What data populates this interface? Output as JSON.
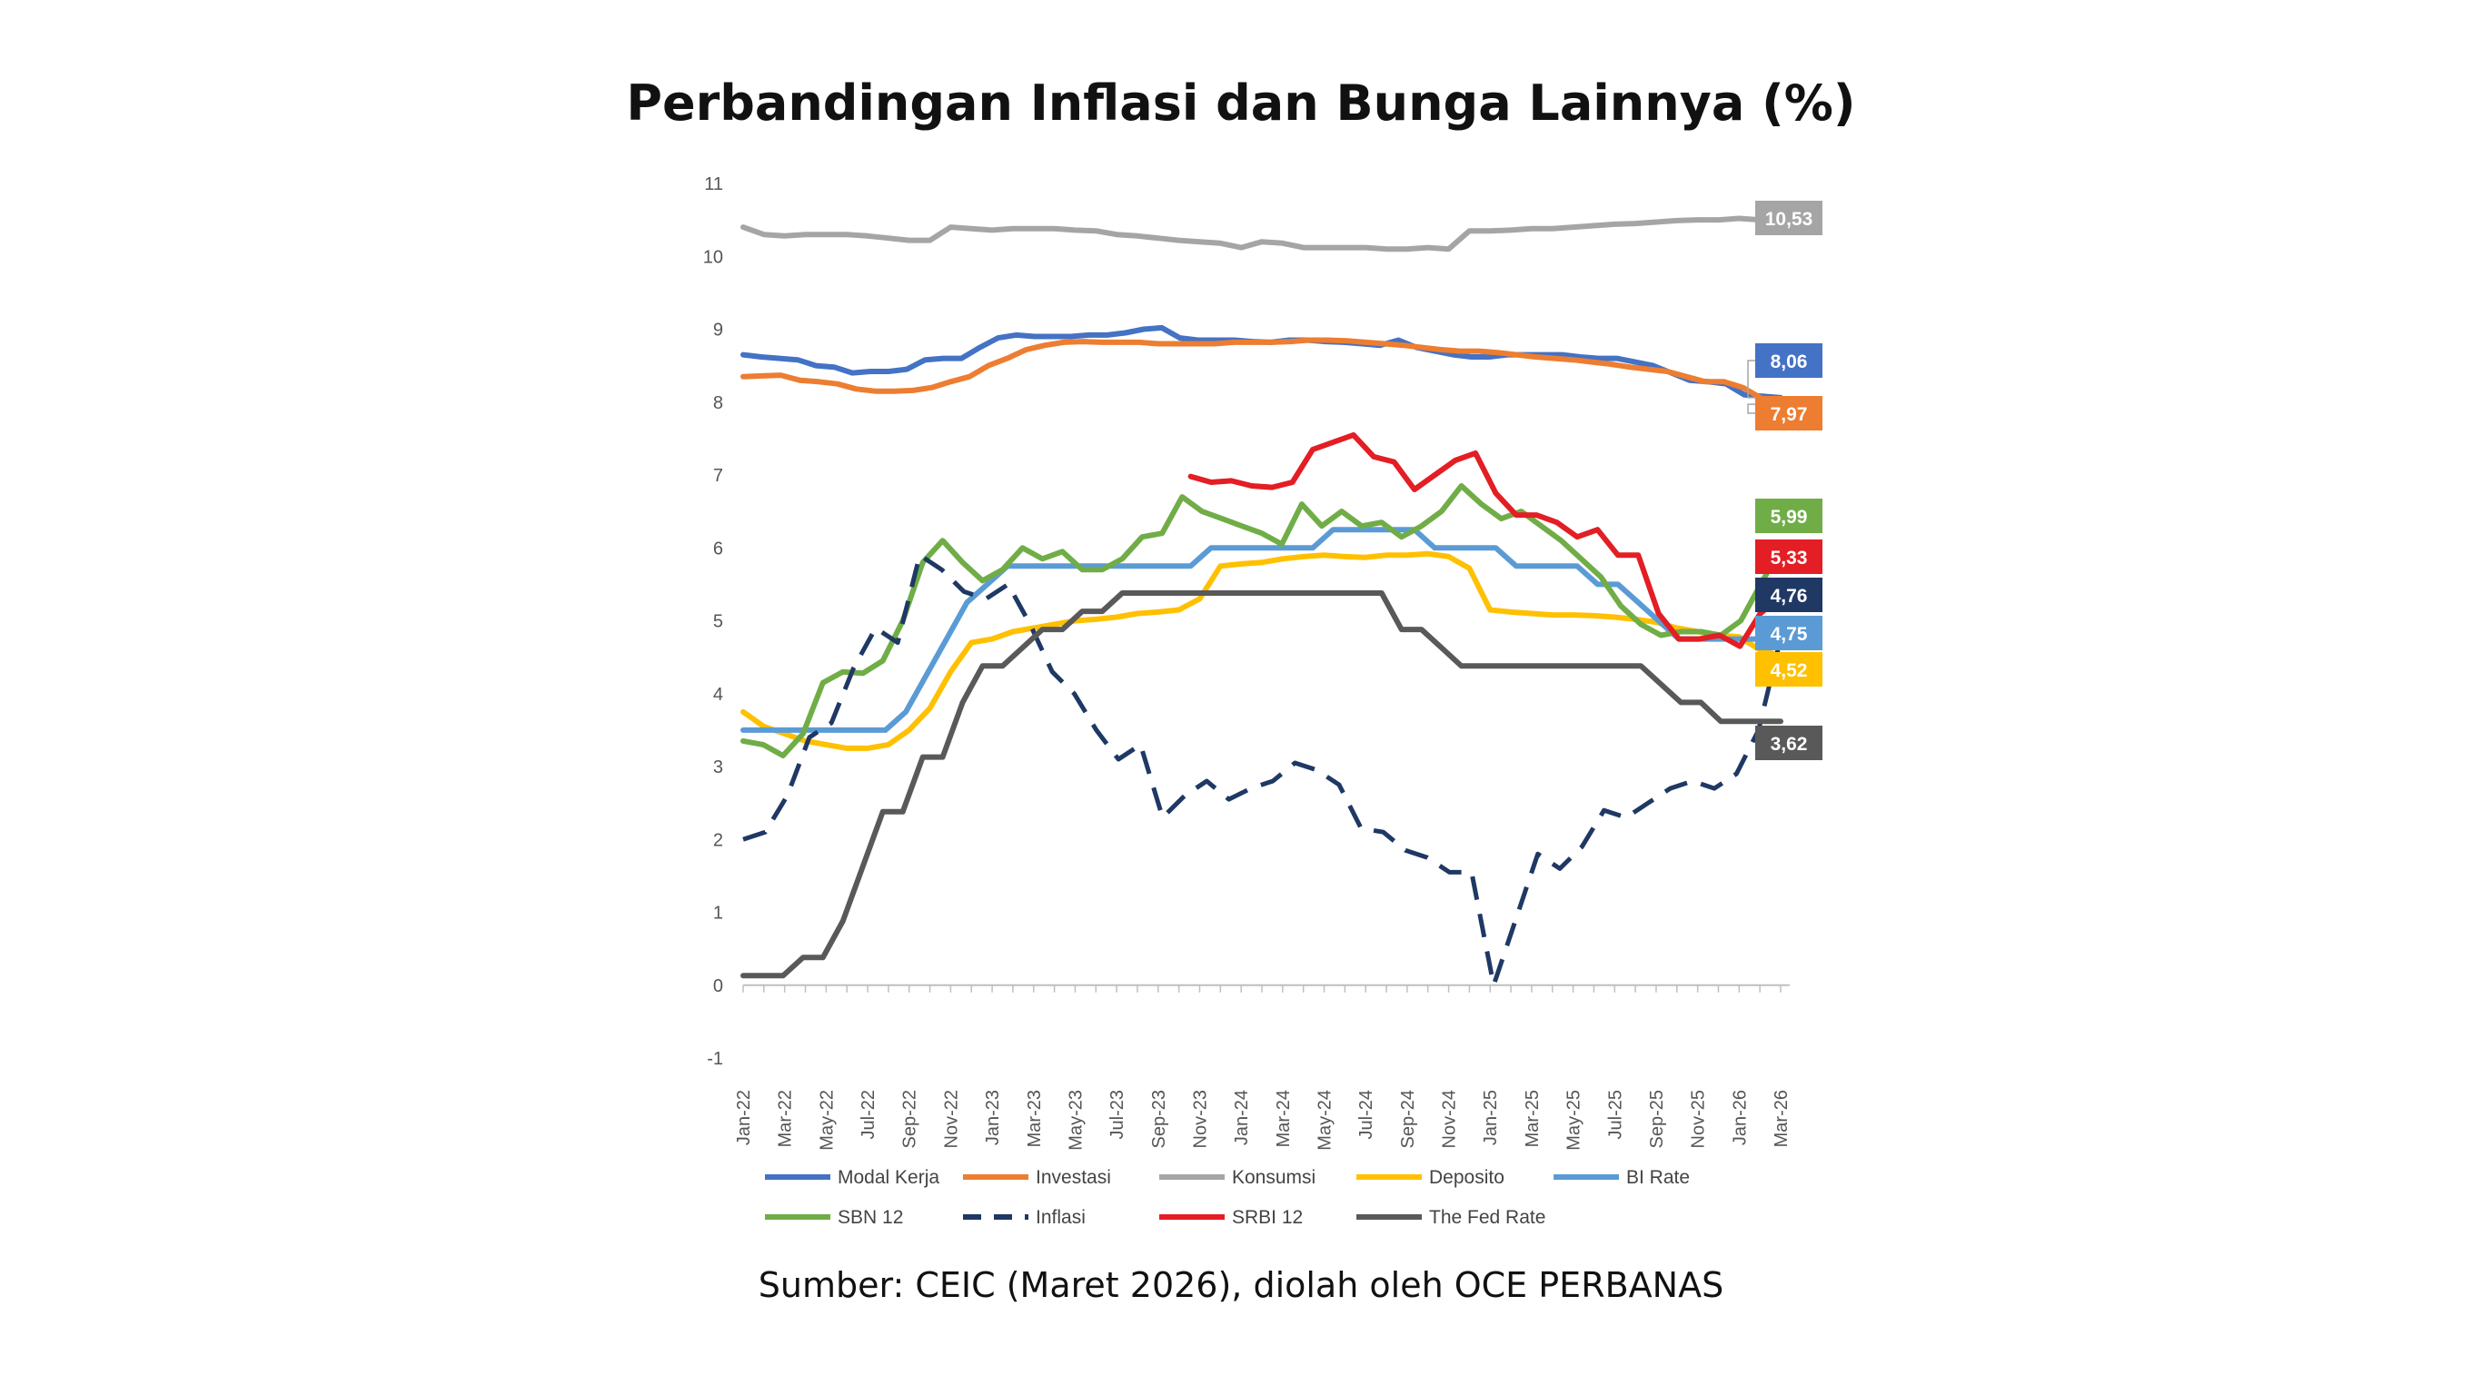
{
  "title": "Perbandingan Inflasi dan Bunga Lainnya (%)",
  "source": "Sumber: CEIC (Maret 2026), diolah oleh OCE PERBANAS",
  "chart_data": {
    "type": "line",
    "title": "Perbandingan Inflasi dan Bunga Lainnya (%)",
    "xlabel": "",
    "ylabel": "",
    "ylim": [
      -1,
      11
    ],
    "yticks": [
      "-1",
      "0",
      "1",
      "2",
      "3",
      "4",
      "5",
      "6",
      "7",
      "8",
      "9",
      "10",
      "11"
    ],
    "xtick_labels": [
      "Jan-22",
      "Mar-22",
      "May-22",
      "Jul-22",
      "Sep-22",
      "Nov-22",
      "Jan-23",
      "Mar-23",
      "May-23",
      "Jul-23",
      "Sep-23",
      "Nov-23",
      "Jan-24",
      "Mar-24",
      "May-24",
      "Jul-24",
      "Sep-24",
      "Nov-24",
      "Jan-25",
      "Mar-25",
      "May-25",
      "Jul-25",
      "Sep-25",
      "Nov-25",
      "Jan-26",
      "Mar-26"
    ],
    "x_months": 51,
    "grid": false,
    "legend_position": "bottom",
    "series": [
      {
        "name": "Modal Kerja",
        "color": "#4472C4",
        "dash": false,
        "end_label": "8,06",
        "values": [
          8.65,
          8.62,
          8.6,
          8.58,
          8.5,
          8.48,
          8.4,
          8.42,
          8.42,
          8.45,
          8.58,
          8.6,
          8.6,
          8.75,
          8.88,
          8.92,
          8.9,
          8.9,
          8.9,
          8.92,
          8.92,
          8.95,
          9.0,
          9.02,
          8.88,
          8.85,
          8.85,
          8.85,
          8.83,
          8.82,
          8.85,
          8.85,
          8.83,
          8.82,
          8.8,
          8.78,
          8.85,
          8.75,
          8.7,
          8.65,
          8.62,
          8.62,
          8.65,
          8.65,
          8.65,
          8.65,
          8.62,
          8.6,
          8.6,
          8.55,
          8.5,
          8.4,
          8.3,
          8.28,
          8.25,
          8.1,
          8.08,
          8.06
        ]
      },
      {
        "name": "Investasi",
        "color": "#ED7D31",
        "dash": false,
        "end_label": "7,97",
        "values": [
          8.35,
          8.36,
          8.37,
          8.3,
          8.28,
          8.25,
          8.18,
          8.15,
          8.15,
          8.16,
          8.2,
          8.28,
          8.35,
          8.5,
          8.6,
          8.72,
          8.78,
          8.82,
          8.83,
          8.82,
          8.82,
          8.82,
          8.8,
          8.8,
          8.8,
          8.8,
          8.82,
          8.82,
          8.82,
          8.83,
          8.85,
          8.85,
          8.84,
          8.82,
          8.8,
          8.78,
          8.75,
          8.72,
          8.7,
          8.7,
          8.68,
          8.65,
          8.62,
          8.6,
          8.58,
          8.55,
          8.52,
          8.48,
          8.45,
          8.42,
          8.35,
          8.28,
          8.28,
          8.2,
          8.05,
          7.97
        ]
      },
      {
        "name": "Konsumsi",
        "color": "#A5A5A5",
        "dash": false,
        "end_label": "10,53",
        "values": [
          10.4,
          10.3,
          10.28,
          10.3,
          10.3,
          10.3,
          10.28,
          10.25,
          10.22,
          10.22,
          10.4,
          10.38,
          10.36,
          10.38,
          10.38,
          10.38,
          10.36,
          10.35,
          10.3,
          10.28,
          10.25,
          10.22,
          10.2,
          10.18,
          10.12,
          10.2,
          10.18,
          10.12,
          10.12,
          10.12,
          10.12,
          10.1,
          10.1,
          10.12,
          10.1,
          10.35,
          10.35,
          10.36,
          10.38,
          10.38,
          10.4,
          10.42,
          10.44,
          10.45,
          10.47,
          10.49,
          10.5,
          10.5,
          10.52,
          10.5,
          10.53
        ]
      },
      {
        "name": "Deposito",
        "color": "#FFC000",
        "dash": false,
        "end_label": "4,52",
        "values": [
          3.75,
          3.55,
          3.45,
          3.35,
          3.3,
          3.25,
          3.25,
          3.3,
          3.5,
          3.8,
          4.3,
          4.7,
          4.75,
          4.85,
          4.9,
          4.95,
          5.0,
          5.02,
          5.05,
          5.1,
          5.12,
          5.15,
          5.3,
          5.75,
          5.78,
          5.8,
          5.85,
          5.88,
          5.9,
          5.88,
          5.87,
          5.9,
          5.9,
          5.92,
          5.88,
          5.72,
          5.15,
          5.12,
          5.1,
          5.08,
          5.08,
          5.07,
          5.05,
          5.02,
          4.98,
          4.9,
          4.85,
          4.8,
          4.78,
          4.6,
          4.52
        ]
      },
      {
        "name": "BI Rate",
        "color": "#5B9BD5",
        "dash": false,
        "end_label": "4,75",
        "values": [
          3.5,
          3.5,
          3.5,
          3.5,
          3.5,
          3.5,
          3.5,
          3.5,
          3.75,
          4.25,
          4.75,
          5.25,
          5.5,
          5.75,
          5.75,
          5.75,
          5.75,
          5.75,
          5.75,
          5.75,
          5.75,
          5.75,
          5.75,
          6.0,
          6.0,
          6.0,
          6.0,
          6.0,
          6.0,
          6.25,
          6.25,
          6.25,
          6.25,
          6.25,
          6.0,
          6.0,
          6.0,
          6.0,
          5.75,
          5.75,
          5.75,
          5.75,
          5.5,
          5.5,
          5.25,
          5.0,
          4.75,
          4.75,
          4.75,
          4.75,
          4.75,
          4.75
        ]
      },
      {
        "name": "SBN 12",
        "color": "#70AD47",
        "dash": false,
        "end_label": "5,99",
        "values": [
          3.35,
          3.3,
          3.15,
          3.45,
          4.15,
          4.3,
          4.28,
          4.45,
          5.0,
          5.8,
          6.1,
          5.8,
          5.55,
          5.7,
          6.0,
          5.85,
          5.95,
          5.7,
          5.7,
          5.85,
          6.15,
          6.2,
          6.7,
          6.5,
          6.4,
          6.3,
          6.2,
          6.05,
          6.6,
          6.3,
          6.5,
          6.3,
          6.35,
          6.15,
          6.3,
          6.5,
          6.85,
          6.6,
          6.4,
          6.5,
          6.3,
          6.1,
          5.85,
          5.6,
          5.2,
          4.95,
          4.8,
          4.85,
          4.85,
          4.8,
          5.0,
          5.5,
          5.99
        ]
      },
      {
        "name": "Inflasi",
        "color": "#1F3864",
        "dash": true,
        "end_label": "4,76",
        "values": [
          2.0,
          2.1,
          2.6,
          3.4,
          3.6,
          4.35,
          4.9,
          4.7,
          5.9,
          5.7,
          5.4,
          5.3,
          5.5,
          4.95,
          4.3,
          4.0,
          3.5,
          3.1,
          3.3,
          2.3,
          2.6,
          2.8,
          2.55,
          2.7,
          2.8,
          3.05,
          2.95,
          2.75,
          2.15,
          2.1,
          1.85,
          1.75,
          1.55,
          1.55,
          0.0,
          0.9,
          1.8,
          1.6,
          1.9,
          2.4,
          2.3,
          2.5,
          2.7,
          2.8,
          2.7,
          2.9,
          3.5,
          4.76
        ]
      },
      {
        "name": "SRBI 12",
        "color": "#E31E24",
        "dash": false,
        "end_label": "5,33",
        "values": [
          null,
          null,
          null,
          null,
          null,
          null,
          null,
          null,
          null,
          null,
          null,
          null,
          null,
          null,
          null,
          null,
          null,
          null,
          null,
          null,
          null,
          null,
          6.98,
          6.9,
          6.92,
          6.85,
          6.83,
          6.9,
          7.35,
          7.45,
          7.55,
          7.25,
          7.18,
          6.8,
          7.0,
          7.2,
          7.3,
          6.75,
          6.45,
          6.45,
          6.35,
          6.15,
          6.25,
          5.9,
          5.9,
          5.1,
          4.75,
          4.75,
          4.8,
          4.65,
          5.1,
          5.33
        ]
      },
      {
        "name": "The Fed Rate",
        "color": "#595959",
        "dash": false,
        "end_label": "3,62",
        "values": [
          0.13,
          0.13,
          0.13,
          0.38,
          0.38,
          0.88,
          1.63,
          2.38,
          2.38,
          3.13,
          3.13,
          3.88,
          4.38,
          4.38,
          4.63,
          4.88,
          4.88,
          5.13,
          5.13,
          5.38,
          5.38,
          5.38,
          5.38,
          5.38,
          5.38,
          5.38,
          5.38,
          5.38,
          5.38,
          5.38,
          5.38,
          5.38,
          5.38,
          4.88,
          4.88,
          4.63,
          4.38,
          4.38,
          4.38,
          4.38,
          4.38,
          4.38,
          4.38,
          4.38,
          4.38,
          4.38,
          4.13,
          3.88,
          3.88,
          3.62,
          3.62,
          3.62,
          3.62
        ]
      }
    ]
  }
}
